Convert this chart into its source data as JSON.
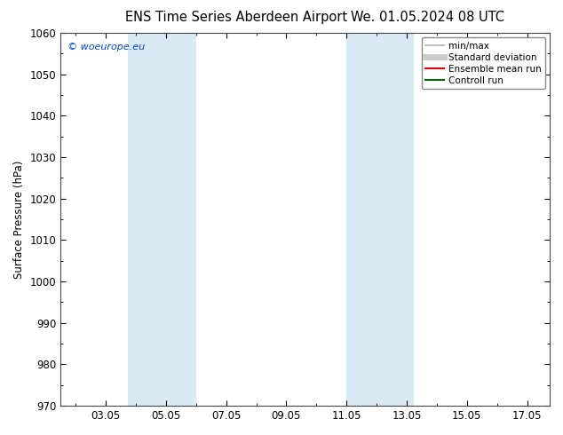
{
  "title_left": "ENS Time Series Aberdeen Airport",
  "title_right": "We. 01.05.2024 08 UTC",
  "ylabel": "Surface Pressure (hPa)",
  "ylim": [
    970,
    1060
  ],
  "yticks": [
    970,
    980,
    990,
    1000,
    1010,
    1020,
    1030,
    1040,
    1050,
    1060
  ],
  "xlim": [
    1.5,
    17.75
  ],
  "xtick_labels": [
    "03.05",
    "05.05",
    "07.05",
    "09.05",
    "11.05",
    "13.05",
    "15.05",
    "17.05"
  ],
  "xtick_positions": [
    3,
    5,
    7,
    9,
    11,
    13,
    15,
    17
  ],
  "shaded_bands": [
    {
      "xmin": 3.75,
      "xmax": 6.0,
      "color": "#daeaf5"
    },
    {
      "xmin": 11.0,
      "xmax": 13.25,
      "color": "#daeaf5"
    }
  ],
  "copyright_text": "© woeurope.eu",
  "legend_entries": [
    {
      "label": "min/max",
      "color": "#b0b0b0",
      "lw": 1.2
    },
    {
      "label": "Standard deviation",
      "color": "#cccccc",
      "lw": 5
    },
    {
      "label": "Ensemble mean run",
      "color": "#dd0000",
      "lw": 1.5
    },
    {
      "label": "Controll run",
      "color": "#006600",
      "lw": 1.5
    }
  ],
  "background_color": "#ffffff",
  "title_fontsize": 10.5,
  "tick_fontsize": 8.5,
  "ylabel_fontsize": 8.5,
  "copyright_fontsize": 8,
  "legend_fontsize": 7.5
}
